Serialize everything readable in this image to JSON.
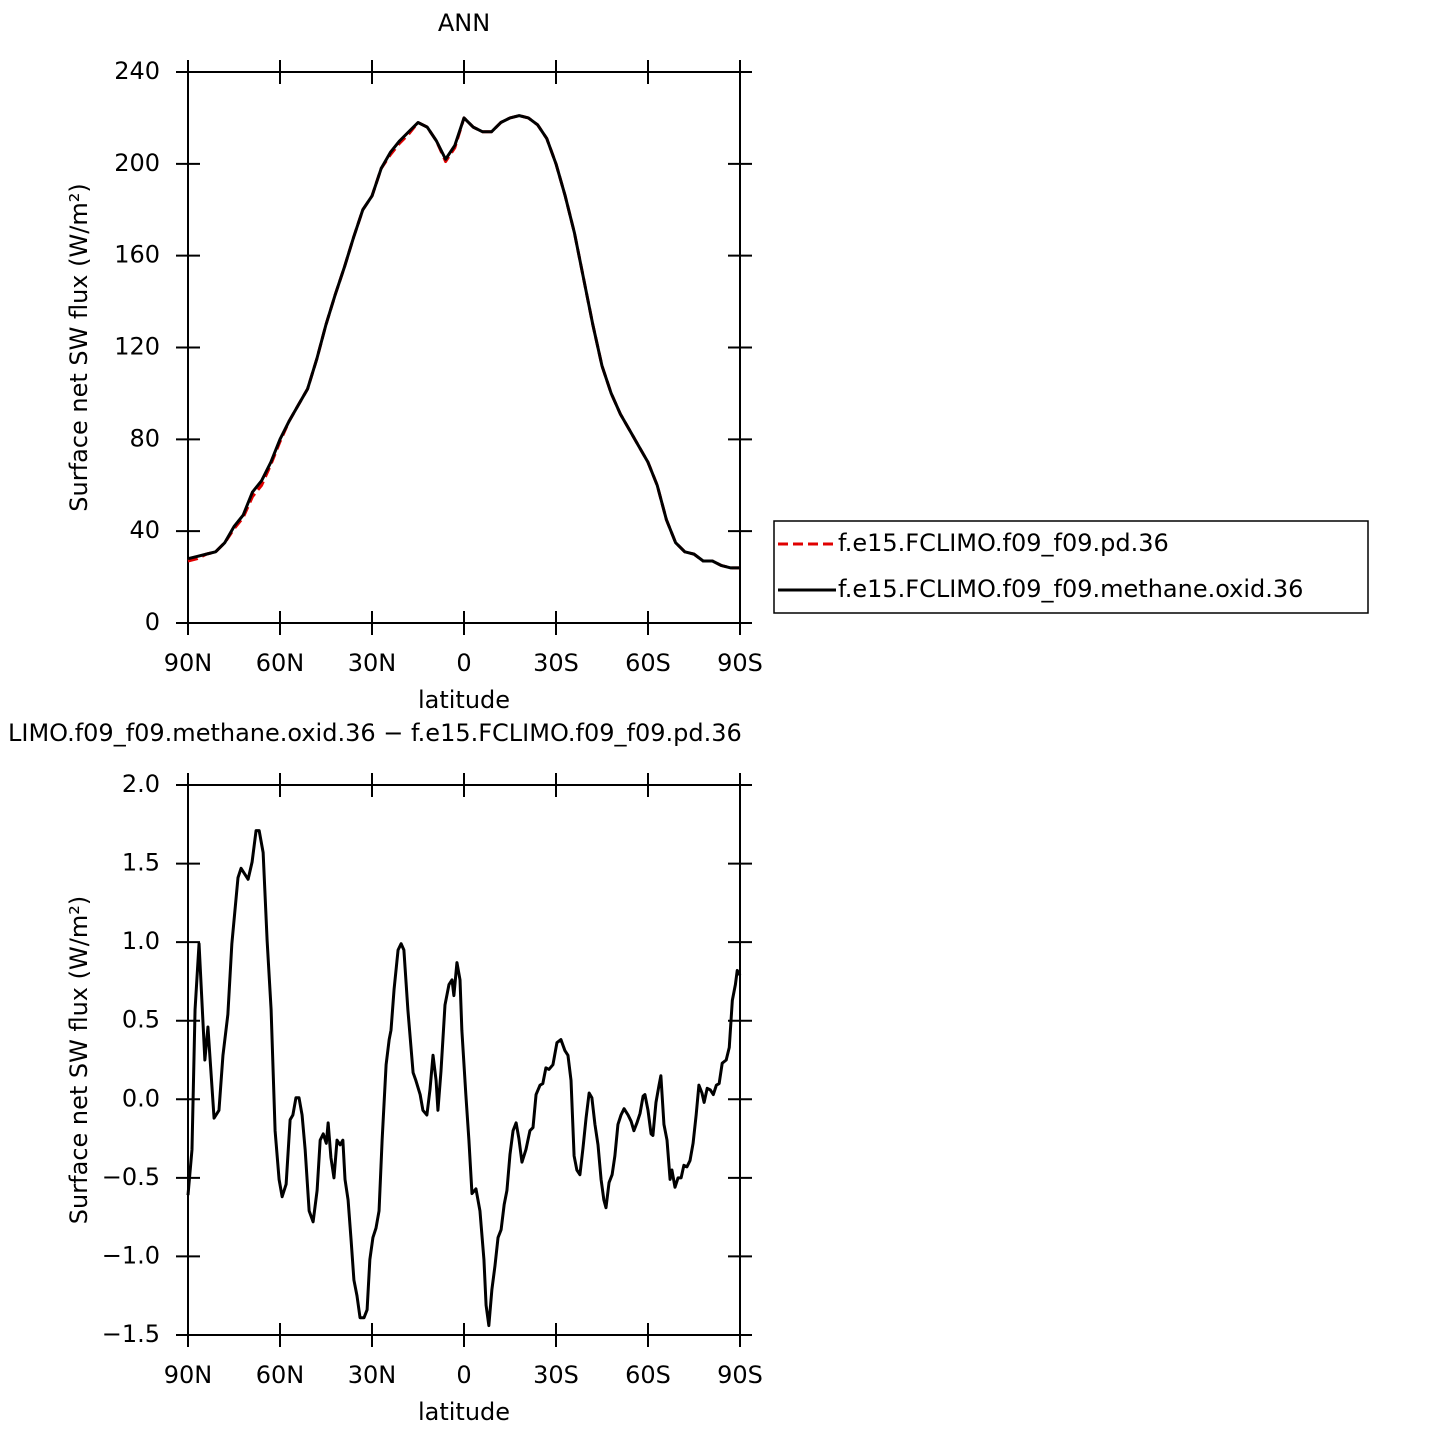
{
  "chart_data": [
    {
      "type": "line",
      "title": "ANN",
      "xlabel": "latitude",
      "ylabel": "Surface net SW flux (W/m²)",
      "x": [
        90,
        87,
        84,
        81,
        78,
        75,
        72,
        69,
        66,
        63,
        60,
        57,
        54,
        51,
        48,
        45,
        42,
        39,
        36,
        33,
        30,
        27,
        24,
        21,
        18,
        15,
        12,
        9,
        6,
        3,
        0,
        -3,
        -6,
        -9,
        -12,
        -15,
        -18,
        -21,
        -24,
        -27,
        -30,
        -33,
        -36,
        -39,
        -42,
        -45,
        -48,
        -51,
        -54,
        -57,
        -60,
        -63,
        -66,
        -69,
        -72,
        -75,
        -78,
        -81,
        -84,
        -87,
        -90
      ],
      "series": [
        {
          "name": "f.e15.FCLIMO.f09_f09.pd.36",
          "color": "#e00000",
          "dash": true,
          "values": [
            27,
            28,
            30,
            31,
            35,
            41,
            46,
            55,
            60,
            69,
            79,
            88,
            95,
            102,
            115,
            130,
            143,
            155,
            168,
            180,
            186,
            198,
            204,
            209,
            213,
            218,
            216,
            210,
            201,
            207,
            220,
            216,
            214,
            214,
            218,
            220,
            221,
            220,
            217,
            211,
            200,
            186,
            170,
            150,
            130,
            112,
            100,
            91,
            84,
            77,
            70,
            60,
            45,
            35,
            31,
            30,
            27,
            27,
            25,
            24,
            24
          ]
        },
        {
          "name": "f.e15.FCLIMO.f09_f09.methane.oxid.36",
          "color": "#000000",
          "dash": false,
          "values": [
            28,
            29,
            30,
            31,
            35,
            42,
            47,
            57,
            62,
            70,
            80,
            88,
            95,
            102,
            115,
            130,
            143,
            155,
            168,
            180,
            186,
            198,
            205,
            210,
            214,
            218,
            216,
            210,
            202,
            208,
            220,
            216,
            214,
            214,
            218,
            220,
            221,
            220,
            217,
            211,
            200,
            186,
            170,
            150,
            130,
            112,
            100,
            91,
            84,
            77,
            70,
            60,
            45,
            35,
            31,
            30,
            27,
            27,
            25,
            24,
            24
          ]
        }
      ],
      "xlim": [
        90,
        -90
      ],
      "xticks": [
        {
          "value": 90,
          "label": "90N"
        },
        {
          "value": 60,
          "label": "60N"
        },
        {
          "value": 30,
          "label": "30N"
        },
        0,
        {
          "value": -30,
          "label": "30S"
        },
        {
          "value": -60,
          "label": "60S"
        },
        {
          "value": -90,
          "label": "90S"
        }
      ],
      "ylim": [
        0,
        240
      ],
      "yticks": [
        0,
        40,
        80,
        120,
        160,
        200,
        240
      ],
      "legend": "right"
    },
    {
      "type": "line",
      "title": "LIMO.f09_f09.methane.oxid.36 − f.e15.FCLIMO.f09_f09.pd.36",
      "xlabel": "latitude",
      "ylabel": "Surface net SW flux (W/m²)",
      "x": [
        90,
        88.7,
        87.7,
        86.4,
        84.5,
        83.5,
        81.5,
        79.9,
        78.6,
        77,
        75.7,
        73.7,
        72.7,
        70.4,
        69.1,
        67.8,
        66.8,
        65.5,
        64.2,
        62.9,
        61.6,
        60.3,
        59.3,
        58,
        56.7,
        55.8,
        54.8,
        53.8,
        52.8,
        51.8,
        50.5,
        49.2,
        47.9,
        46.9,
        45.9,
        44.9,
        44.3,
        43.4,
        42.4,
        41.4,
        40.4,
        39.5,
        38.8,
        37.8,
        36.8,
        35.9,
        34.9,
        33.9,
        32.6,
        31.6,
        30.7,
        29.7,
        28.7,
        27.7,
        26.7,
        25.4,
        24.4,
        23.8,
        22.8,
        21.5,
        20.5,
        19.6,
        18.3,
        16.6,
        15.7,
        14.3,
        13.4,
        12.1,
        11.1,
        10.1,
        9.1,
        8.5,
        7.5,
        6.2,
        4.9,
        3.9,
        3.3,
        2.3,
        1.3,
        0.7,
        -0.6,
        -1.6,
        -2.6,
        -3.9,
        -5.2,
        -6.5,
        -7.2,
        -8.1,
        -9.1,
        -10.1,
        -11.1,
        -12.1,
        -13.1,
        -14,
        -15,
        -16,
        -17,
        -17.9,
        -18.9,
        -20.2,
        -21.5,
        -22.5,
        -23.5,
        -24.8,
        -25.7,
        -26.7,
        -27.7,
        -29,
        -30.3,
        -31.6,
        -32.9,
        -33.9,
        -34.9,
        -35.9,
        -36.8,
        -37.8,
        -38.8,
        -39.8,
        -40.8,
        -41.7,
        -42.7,
        -43.7,
        -44.7,
        -45.6,
        -46.3,
        -47.3,
        -48.3,
        -49.2,
        -50.2,
        -51.2,
        -52.2,
        -53.5,
        -54.5,
        -55.4,
        -56.4,
        -57.4,
        -58.4,
        -59,
        -60,
        -61,
        -61.6,
        -62.6,
        -63.6,
        -64.2,
        -65.2,
        -66.2,
        -67.2,
        -67.8,
        -68.8,
        -69.8,
        -70.8,
        -71.7,
        -72.7,
        -73.7,
        -74.7,
        -75.7,
        -76.6,
        -77.6,
        -78.3,
        -79.3,
        -80.3,
        -81.3,
        -82.3,
        -83.2,
        -84.2,
        -85.5,
        -86.5,
        -87.5,
        -88.5,
        -89.1,
        -90
      ],
      "series": [
        {
          "name": null,
          "color": "#000000",
          "dash": false,
          "values": [
            -0.61,
            -0.32,
            0.57,
            0.99,
            0.25,
            0.46,
            -0.12,
            -0.07,
            0.28,
            0.54,
            0.99,
            1.41,
            1.47,
            1.4,
            1.51,
            1.71,
            1.71,
            1.57,
            1.01,
            0.57,
            -0.2,
            -0.51,
            -0.62,
            -0.54,
            -0.13,
            -0.1,
            0.01,
            0.01,
            -0.1,
            -0.32,
            -0.71,
            -0.78,
            -0.58,
            -0.26,
            -0.22,
            -0.28,
            -0.15,
            -0.37,
            -0.5,
            -0.26,
            -0.29,
            -0.26,
            -0.51,
            -0.64,
            -0.9,
            -1.15,
            -1.25,
            -1.39,
            -1.39,
            -1.34,
            -1.02,
            -0.88,
            -0.82,
            -0.71,
            -0.26,
            0.22,
            0.38,
            0.44,
            0.7,
            0.95,
            0.99,
            0.95,
            0.57,
            0.17,
            0.12,
            0.03,
            -0.07,
            -0.1,
            0.06,
            0.28,
            0.12,
            -0.07,
            0.18,
            0.6,
            0.73,
            0.76,
            0.66,
            0.87,
            0.76,
            0.44,
            0.03,
            -0.26,
            -0.6,
            -0.57,
            -0.71,
            -1.02,
            -1.31,
            -1.44,
            -1.21,
            -1.06,
            -0.88,
            -0.83,
            -0.67,
            -0.58,
            -0.35,
            -0.2,
            -0.15,
            -0.25,
            -0.4,
            -0.32,
            -0.2,
            -0.18,
            0.03,
            0.09,
            0.1,
            0.2,
            0.19,
            0.22,
            0.36,
            0.38,
            0.31,
            0.28,
            0.12,
            -0.36,
            -0.45,
            -0.48,
            -0.31,
            -0.12,
            0.04,
            0.01,
            -0.16,
            -0.29,
            -0.51,
            -0.64,
            -0.69,
            -0.53,
            -0.48,
            -0.36,
            -0.16,
            -0.1,
            -0.06,
            -0.1,
            -0.14,
            -0.2,
            -0.15,
            -0.09,
            0.02,
            0.03,
            -0.07,
            -0.22,
            -0.23,
            -0.02,
            0.09,
            0.15,
            -0.16,
            -0.26,
            -0.51,
            -0.45,
            -0.56,
            -0.5,
            -0.5,
            -0.42,
            -0.43,
            -0.39,
            -0.28,
            -0.1,
            0.09,
            0.04,
            -0.02,
            0.07,
            0.06,
            0.03,
            0.09,
            0.1,
            0.23,
            0.25,
            0.33,
            0.63,
            0.73,
            0.82,
            0.79
          ]
        }
      ],
      "xlim": [
        90,
        -90
      ],
      "xticks": [
        {
          "value": 90,
          "label": "90N"
        },
        {
          "value": 60,
          "label": "60N"
        },
        {
          "value": 30,
          "label": "30N"
        },
        0,
        {
          "value": -30,
          "label": "30S"
        },
        {
          "value": -60,
          "label": "60S"
        },
        {
          "value": -90,
          "label": "90S"
        }
      ],
      "ylim": [
        -1.5,
        2
      ],
      "yticks": [
        {
          "value": -1.5,
          "label": "−1.5"
        },
        {
          "value": -1,
          "label": "−1.0"
        },
        {
          "value": -0.5,
          "label": "−0.5"
        },
        {
          "value": 0,
          "label": "0.0"
        },
        0.5,
        {
          "value": 1,
          "label": "1.0"
        },
        1.5,
        {
          "value": 2,
          "label": "2.0"
        }
      ]
    }
  ]
}
